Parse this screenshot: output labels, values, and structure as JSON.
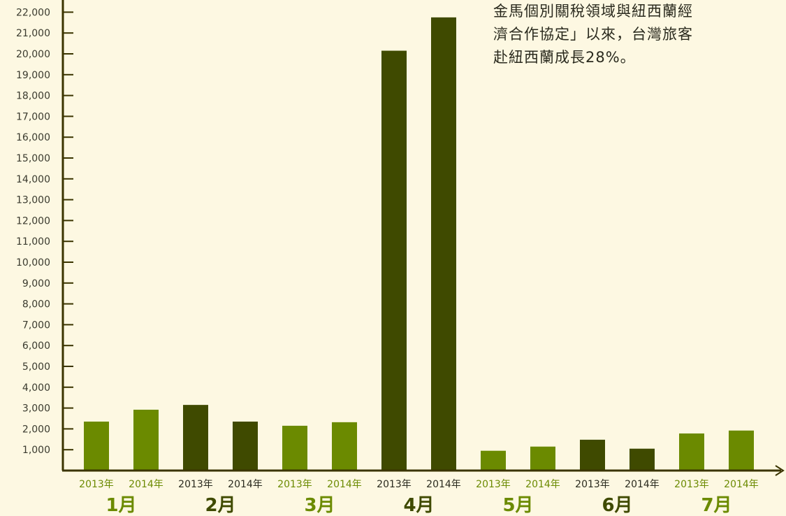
{
  "annotation": {
    "lines": [
      "金馬個別關稅領域與紐西蘭經",
      "濟合作協定」以來，台灣旅客",
      "赴紐西蘭成長28%。"
    ]
  },
  "chart_data": {
    "type": "bar",
    "title": "",
    "xlabel": "",
    "ylabel": "",
    "ylim": [
      0,
      22000
    ],
    "y_ticks": [
      "1,000",
      "2,000",
      "3,000",
      "4,000",
      "5,000",
      "6,000",
      "7,000",
      "8,000",
      "9,000",
      "10,000",
      "11,000",
      "12,000",
      "13,000",
      "14,000",
      "15,000",
      "16,000",
      "17,000",
      "18,000",
      "19,000",
      "20,000",
      "21,000",
      "22,000"
    ],
    "y_tick_values": [
      1000,
      2000,
      3000,
      4000,
      5000,
      6000,
      7000,
      8000,
      9000,
      10000,
      11000,
      12000,
      13000,
      14000,
      15000,
      16000,
      17000,
      18000,
      19000,
      20000,
      21000,
      22000
    ],
    "months": [
      "1月",
      "2月",
      "3月",
      "4月",
      "5月",
      "6月",
      "7月"
    ],
    "year_labels": [
      "2013年",
      "2014年"
    ],
    "values_by_month": [
      [
        2350,
        2920
      ],
      [
        3150,
        2350
      ],
      [
        2150,
        2320
      ],
      [
        20150,
        21750
      ],
      [
        950,
        1150
      ],
      [
        1480,
        1050
      ],
      [
        1780,
        1920
      ]
    ],
    "colors": {
      "light": "#6b8a00",
      "dark": "#3f4a00",
      "axis": "#3a3400",
      "month_light": "#6b8a00",
      "month_dark": "#3f4a00"
    }
  }
}
